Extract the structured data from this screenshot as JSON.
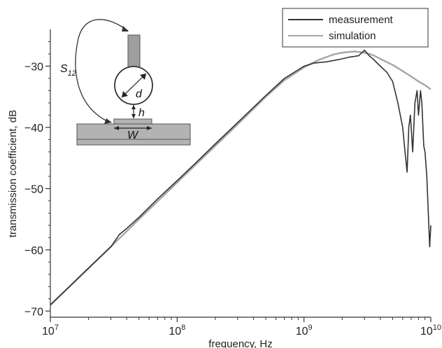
{
  "chart_data": {
    "type": "line",
    "title": "",
    "xlabel": "frequency, Hz",
    "ylabel": "transmission coefficient, dB",
    "x_scale": "log",
    "xlim": [
      10000000.0,
      10000000000.0
    ],
    "ylim": [
      -71,
      -24
    ],
    "x_ticks": [
      {
        "value": 10000000.0,
        "base": "10",
        "exp": "7"
      },
      {
        "value": 100000000.0,
        "base": "10",
        "exp": "8"
      },
      {
        "value": 1000000000.0,
        "base": "10",
        "exp": "9"
      },
      {
        "value": 10000000000.0,
        "base": "10",
        "exp": "10"
      }
    ],
    "y_ticks": [
      {
        "value": -30,
        "label": "−30"
      },
      {
        "value": -40,
        "label": "−40"
      },
      {
        "value": -50,
        "label": "−50"
      },
      {
        "value": -60,
        "label": "−60"
      },
      {
        "value": -70,
        "label": "−70"
      }
    ],
    "grid": false,
    "legend_position": "top-right",
    "series": [
      {
        "name": "measurement",
        "color": "#333333",
        "x": [
          10000000.0,
          15000000.0,
          20000000.0,
          30000000.0,
          35000000.0,
          40000000.0,
          50000000.0,
          70000000.0,
          100000000.0,
          150000000.0,
          200000000.0,
          300000000.0,
          500000000.0,
          700000000.0,
          1000000000.0,
          1200000000.0,
          1500000000.0,
          1800000000.0,
          2000000000.0,
          2300000000.0,
          2700000000.0,
          3000000000.0,
          3300000000.0,
          3500000000.0,
          4000000000.0,
          4500000000.0,
          5000000000.0,
          5500000000.0,
          6000000000.0,
          6300000000.0,
          6500000000.0,
          6700000000.0,
          6900000000.0,
          7200000000.0,
          7500000000.0,
          7800000000.0,
          8000000000.0,
          8300000000.0,
          8500000000.0,
          8800000000.0,
          9000000000.0,
          9300000000.0,
          9600000000.0,
          9800000000.0,
          10000000000.0
        ],
        "y": [
          -69,
          -65.5,
          -63,
          -59.5,
          -57.5,
          -56.5,
          -54.7,
          -51.7,
          -48.7,
          -45.2,
          -42.7,
          -39.2,
          -34.8,
          -32,
          -30,
          -29.5,
          -29.3,
          -29,
          -28.8,
          -28.5,
          -28.3,
          -27.4,
          -28.4,
          -28.8,
          -30,
          -31,
          -32.5,
          -36,
          -40,
          -44.5,
          -47.3,
          -40,
          -38,
          -44,
          -36,
          -34,
          -38,
          -34,
          -36,
          -43,
          -44,
          -48,
          -55,
          -59.5,
          -56
        ]
      },
      {
        "name": "simulation",
        "color": "#a6a6a6",
        "x": [
          10000000.0,
          20000000.0,
          30000000.0,
          50000000.0,
          100000000.0,
          200000000.0,
          300000000.0,
          500000000.0,
          700000000.0,
          1000000000.0,
          1300000000.0,
          1700000000.0,
          2000000000.0,
          2500000000.0,
          3000000000.0,
          3500000000.0,
          4000000000.0,
          5000000000.0,
          6000000000.0,
          7000000000.0,
          8000000000.0,
          9000000000.0,
          10000000000.0
        ],
        "y": [
          -69,
          -63,
          -59.5,
          -55,
          -49,
          -43,
          -39.5,
          -35,
          -32.3,
          -30.2,
          -29,
          -28.1,
          -27.8,
          -27.6,
          -27.8,
          -28.2,
          -28.8,
          -29.8,
          -30.8,
          -31.7,
          -32.5,
          -33.1,
          -33.8
        ]
      }
    ]
  },
  "inset": {
    "s12_label": "S",
    "s12_sub": "12",
    "d_label": "d",
    "h_label": "h",
    "w_label": "W"
  },
  "colors": {
    "axis": "#333333",
    "inset_fill": "#b3b3b3",
    "inset_stroke": "#555555"
  }
}
